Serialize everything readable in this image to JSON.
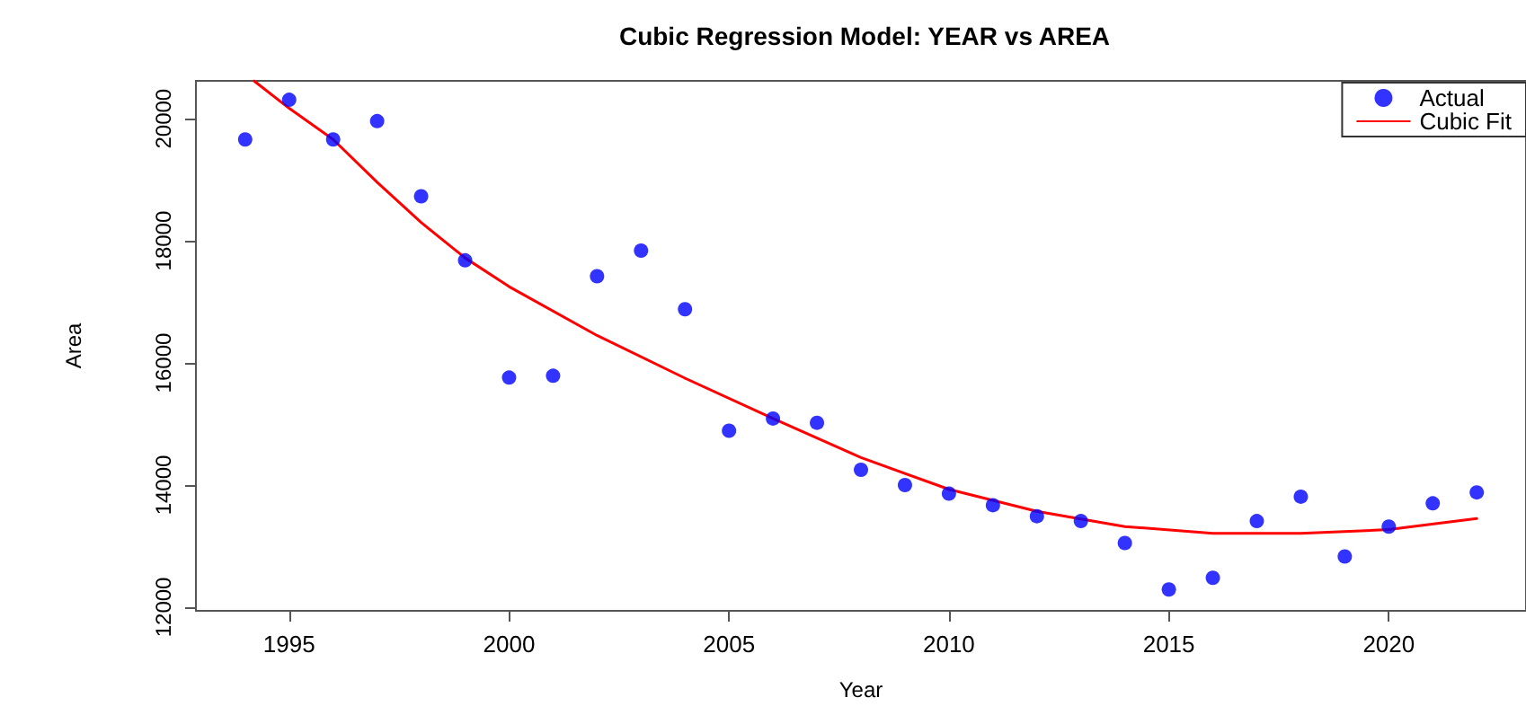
{
  "chart_data": {
    "type": "scatter",
    "title": "Cubic Regression Model: YEAR vs AREA",
    "xlabel": "Year",
    "ylabel": "Area",
    "xlim": [
      1992.88,
      2023.12
    ],
    "xticks": [
      1995,
      2000,
      2005,
      2010,
      2015,
      2020
    ],
    "ylim": [
      11940,
      20620
    ],
    "yticks": [
      12000,
      14000,
      16000,
      18000,
      20000
    ],
    "grid": false,
    "legend": "top right",
    "marker": "circle",
    "series": [
      {
        "name": "Actual",
        "color": "#0000ff",
        "x": [
          1994,
          1995,
          1996,
          1997,
          1998,
          1999,
          2000,
          2001,
          2002,
          2003,
          2004,
          2005,
          2006,
          2007,
          2008,
          2009,
          2010,
          2011,
          2012,
          2013,
          2014,
          2015,
          2016,
          2017,
          2018,
          2019,
          2020,
          2021,
          2022
        ],
        "values": [
          19660,
          20310,
          19660,
          19960,
          18730,
          17680,
          15760,
          15790,
          17420,
          17840,
          16880,
          14890,
          15090,
          15020,
          14250,
          14000,
          13860,
          13670,
          13490,
          13410,
          13050,
          12290,
          12480,
          13410,
          13810,
          12830,
          13320,
          13700,
          13880
        ]
      },
      {
        "name": "Cubic Fit",
        "type": "line",
        "color": "#ff0000",
        "line_style": "solid",
        "marker": "none",
        "x": [
          1994.2,
          1995,
          1996,
          1997,
          1998,
          1999,
          2000,
          2002,
          2004,
          2006,
          2008,
          2010,
          2012,
          2014,
          2016,
          2018,
          2020,
          2022
        ],
        "values": [
          20620,
          20170,
          19660,
          18960,
          18300,
          17720,
          17250,
          16450,
          15750,
          15090,
          14450,
          13930,
          13570,
          13320,
          13210,
          13210,
          13270,
          13450
        ]
      }
    ]
  }
}
